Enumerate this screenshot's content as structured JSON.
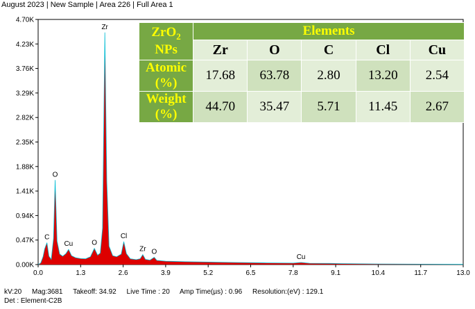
{
  "header": {
    "text": "August 2023 | New Sample | Area 226 | Full Area 1"
  },
  "footer": {
    "row1": [
      "kV:20",
      "Mag:3681",
      "Takeoff: 34.92",
      "Live Time : 20",
      "Amp Time(µs) : 0.96",
      "Resolution:(eV) : 129.1"
    ],
    "row2": "Det : Element-C2B"
  },
  "table": {
    "corner_label": "ZrO",
    "corner_sub": "2",
    "corner_suffix": " NPs",
    "header": "Elements",
    "columns": [
      "Zr",
      "O",
      "C",
      "Cl",
      "Cu"
    ],
    "rows": [
      {
        "label": "Atomic (%)",
        "values": [
          "17.68",
          "63.78",
          "2.80",
          "13.20",
          "2.54"
        ]
      },
      {
        "label": "Weight (%)",
        "values": [
          "44.70",
          "35.47",
          "5.71",
          "11.45",
          "2.67"
        ]
      }
    ]
  },
  "chart_data": {
    "type": "area",
    "title": "",
    "xlabel": "",
    "ylabel": "",
    "xlim": [
      0,
      13
    ],
    "ylim": [
      0,
      4700
    ],
    "x_ticks": [
      "0.0",
      "1.3",
      "2.6",
      "3.9",
      "5.2",
      "6.5",
      "7.8",
      "9.1",
      "10.4",
      "11.7",
      "13.0"
    ],
    "y_ticks": [
      "0.00K",
      "0.47K",
      "0.94K",
      "1.41K",
      "1.88K",
      "2.35K",
      "2.82K",
      "3.29K",
      "3.76K",
      "4.23K",
      "4.70K"
    ],
    "grid": false,
    "fill_color": "#dd0000",
    "line_color": "#00bcd4",
    "peaks": [
      {
        "label": "C",
        "x": 0.27,
        "y": 420
      },
      {
        "label": "O",
        "x": 0.52,
        "y": 1620
      },
      {
        "label": "Cu",
        "x": 0.93,
        "y": 290
      },
      {
        "label": "O",
        "x": 1.72,
        "y": 310
      },
      {
        "label": "Zr",
        "x": 2.04,
        "y": 4450
      },
      {
        "label": "Cl",
        "x": 2.62,
        "y": 440
      },
      {
        "label": "Zr",
        "x": 3.2,
        "y": 190
      },
      {
        "label": "O",
        "x": 3.55,
        "y": 140
      },
      {
        "label": "Cu",
        "x": 8.04,
        "y": 40
      }
    ],
    "spectrum": [
      [
        0.0,
        0
      ],
      [
        0.08,
        30
      ],
      [
        0.15,
        150
      ],
      [
        0.2,
        300
      ],
      [
        0.27,
        420
      ],
      [
        0.33,
        160
      ],
      [
        0.4,
        100
      ],
      [
        0.47,
        500
      ],
      [
        0.52,
        1620
      ],
      [
        0.58,
        450
      ],
      [
        0.66,
        200
      ],
      [
        0.75,
        160
      ],
      [
        0.85,
        210
      ],
      [
        0.93,
        290
      ],
      [
        1.02,
        170
      ],
      [
        1.15,
        130
      ],
      [
        1.3,
        115
      ],
      [
        1.45,
        110
      ],
      [
        1.6,
        150
      ],
      [
        1.72,
        310
      ],
      [
        1.82,
        180
      ],
      [
        1.9,
        220
      ],
      [
        1.97,
        700
      ],
      [
        2.04,
        4450
      ],
      [
        2.1,
        1600
      ],
      [
        2.17,
        350
      ],
      [
        2.28,
        170
      ],
      [
        2.4,
        150
      ],
      [
        2.54,
        200
      ],
      [
        2.62,
        440
      ],
      [
        2.7,
        210
      ],
      [
        2.82,
        110
      ],
      [
        3.0,
        95
      ],
      [
        3.12,
        110
      ],
      [
        3.2,
        190
      ],
      [
        3.28,
        100
      ],
      [
        3.42,
        85
      ],
      [
        3.55,
        140
      ],
      [
        3.63,
        80
      ],
      [
        3.9,
        65
      ],
      [
        4.5,
        55
      ],
      [
        5.2,
        48
      ],
      [
        6.0,
        40
      ],
      [
        7.0,
        32
      ],
      [
        7.8,
        28
      ],
      [
        8.04,
        40
      ],
      [
        8.3,
        25
      ],
      [
        8.9,
        22
      ],
      [
        9.3,
        18
      ],
      [
        10.4,
        12
      ],
      [
        11.7,
        8
      ],
      [
        13.0,
        5
      ]
    ]
  }
}
